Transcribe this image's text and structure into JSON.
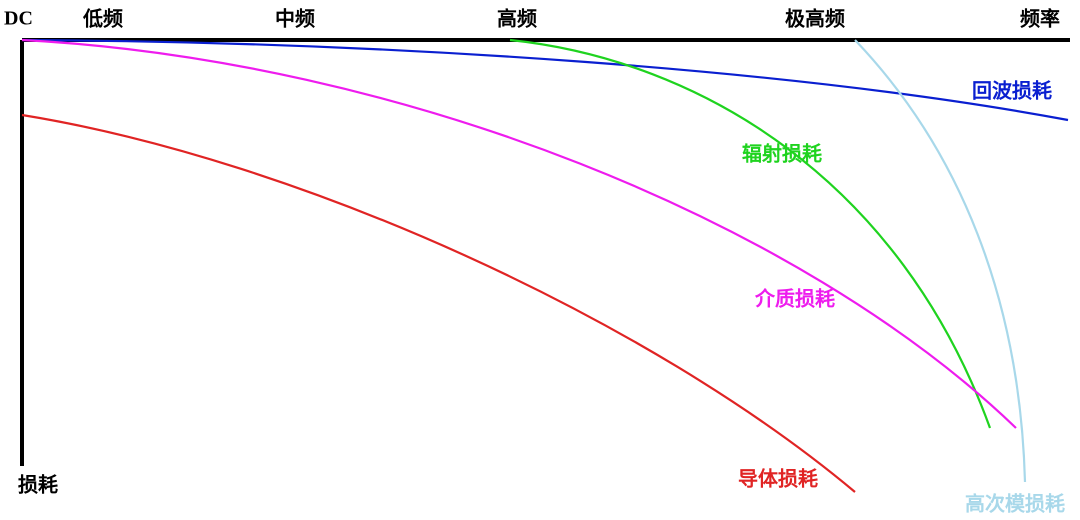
{
  "axis": {
    "x_labels": [
      "DC",
      "低频",
      "中频",
      "高频",
      "极高频",
      "频率"
    ],
    "y_label": "损耗"
  },
  "curves": [
    {
      "label": "回波损耗"
    },
    {
      "label": "辐射损耗"
    },
    {
      "label": "介质损耗"
    },
    {
      "label": "导体损耗"
    },
    {
      "label": "高次模损耗"
    }
  ]
}
